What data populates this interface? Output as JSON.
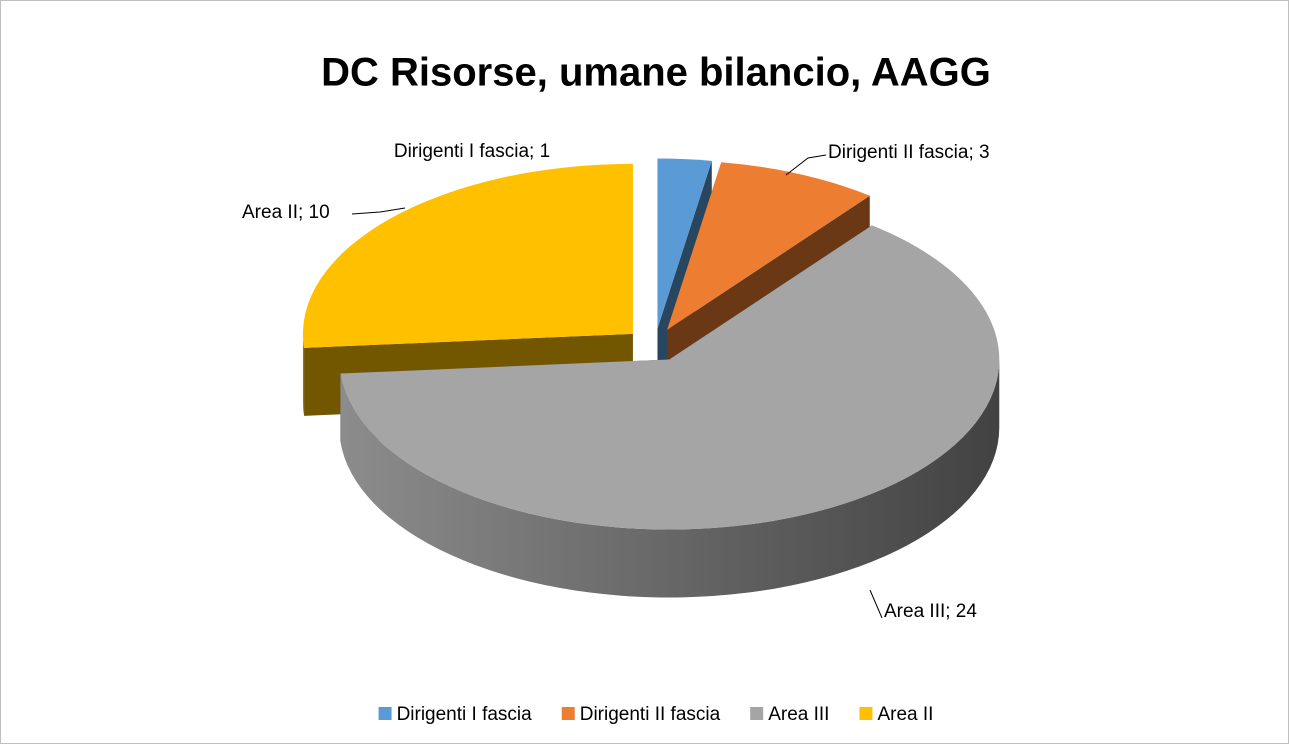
{
  "chart_data": {
    "type": "pie3d",
    "title": "DC Risorse, umane bilancio, AAGG",
    "categories": [
      "Dirigenti I fascia",
      "Dirigenti II fascia",
      "Area III",
      "Area II"
    ],
    "values": [
      1,
      3,
      24,
      10
    ],
    "value_labels": [
      "Dirigenti I fascia; 1",
      "Dirigenti II fascia; 3",
      "Area III; 24",
      "Area II; 10"
    ],
    "colors": [
      "#5b9bd5",
      "#ed7d31",
      "#a5a5a5",
      "#ffc000"
    ],
    "legend": "bottom"
  }
}
